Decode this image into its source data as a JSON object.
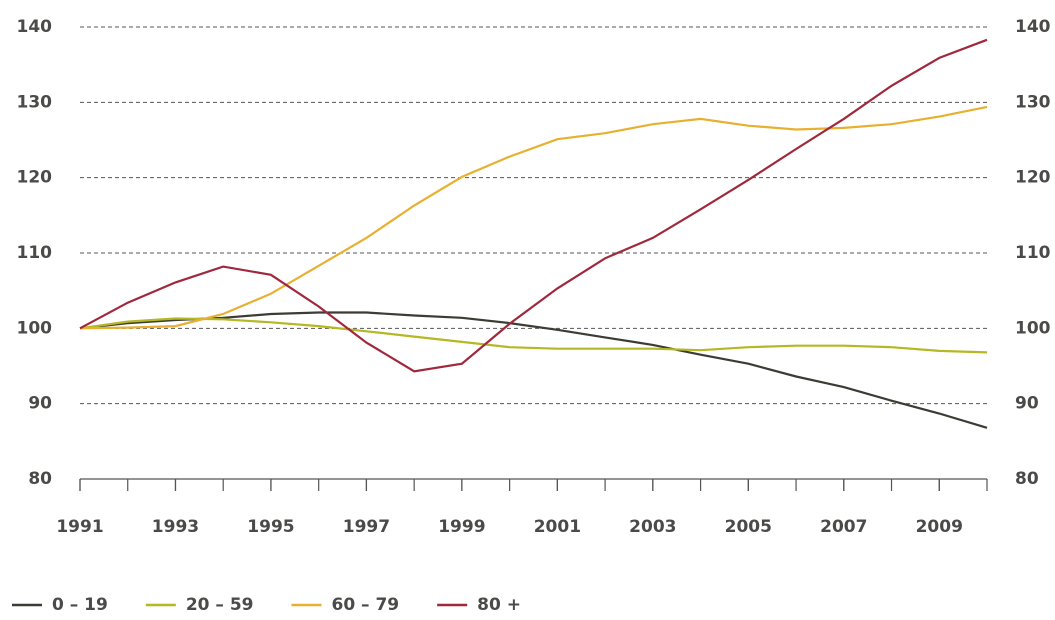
{
  "chart_data": {
    "type": "line",
    "x": [
      1991,
      1992,
      1993,
      1994,
      1995,
      1996,
      1997,
      1998,
      1999,
      2000,
      2001,
      2002,
      2003,
      2004,
      2005,
      2006,
      2007,
      2008,
      2009,
      2010
    ],
    "series": [
      {
        "name": "0 – 19",
        "color": "#3c3c34",
        "values": [
          100,
          100.7,
          101.1,
          101.4,
          101.9,
          102.1,
          102.1,
          101.7,
          101.4,
          100.7,
          99.8,
          98.8,
          97.8,
          96.5,
          95.3,
          93.6,
          92.2,
          90.4,
          88.7,
          86.8
        ]
      },
      {
        "name": "20 – 59",
        "color": "#b5b824",
        "values": [
          100,
          100.9,
          101.3,
          101.2,
          100.8,
          100.3,
          99.6,
          98.9,
          98.2,
          97.5,
          97.3,
          97.3,
          97.3,
          97.1,
          97.5,
          97.7,
          97.7,
          97.5,
          97.0,
          96.8
        ]
      },
      {
        "name": "60 – 79",
        "color": "#e8b030",
        "values": [
          100,
          100.1,
          100.3,
          101.9,
          104.6,
          108.3,
          112.0,
          116.3,
          120.1,
          122.8,
          125.1,
          125.9,
          127.1,
          127.8,
          126.9,
          126.4,
          126.6,
          127.1,
          128.1,
          129.4
        ]
      },
      {
        "name": "80 +",
        "color": "#a0283c",
        "values": [
          100,
          103.4,
          106.1,
          108.2,
          107.1,
          102.9,
          98.1,
          94.3,
          95.3,
          100.6,
          105.3,
          109.3,
          112.0,
          115.8,
          119.7,
          123.8,
          127.8,
          132.2,
          135.9,
          138.3
        ]
      }
    ],
    "xlim": [
      1991,
      2010
    ],
    "xticks": [
      1991,
      1993,
      1995,
      1997,
      1999,
      2001,
      2003,
      2005,
      2007,
      2009
    ],
    "ylim": [
      80,
      140
    ],
    "yticks": [
      80,
      90,
      100,
      110,
      120,
      130,
      140
    ],
    "grid": true,
    "legend": "bottom"
  }
}
